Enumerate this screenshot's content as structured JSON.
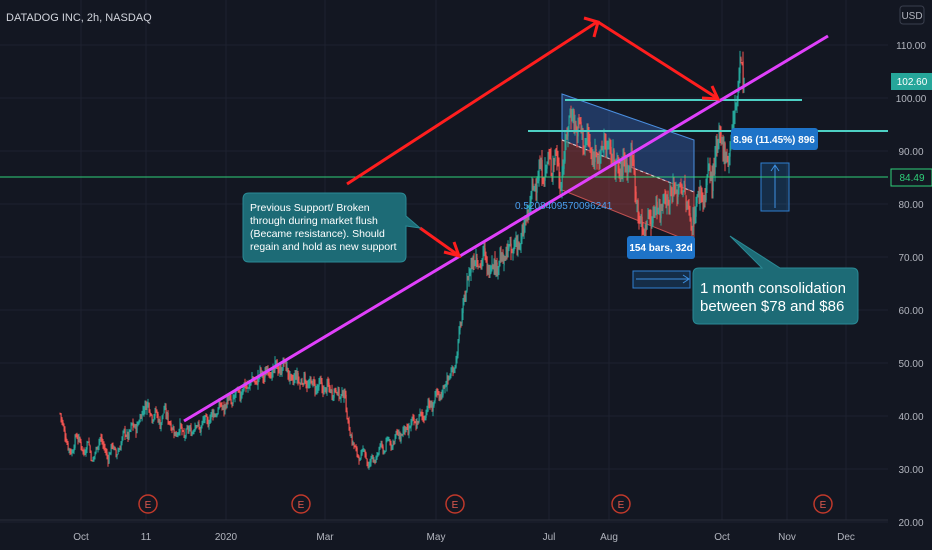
{
  "header": {
    "title": "DATADOG INC, 2h, NASDAQ"
  },
  "currency_badge": "USD",
  "price_labels": {
    "last": "102.60",
    "hline": "84.49"
  },
  "chart_data": {
    "type": "candlestick",
    "title": "DATADOG INC, 2h, NASDAQ",
    "y_unit": "USD",
    "ylim": [
      20,
      115
    ],
    "y_ticks": [
      "20.00",
      "30.00",
      "40.00",
      "50.00",
      "60.00",
      "70.00",
      "80.00",
      "90.00",
      "100.00",
      "110.00"
    ],
    "y_tick_values": [
      20,
      30,
      40,
      50,
      60,
      70,
      80,
      90,
      100,
      110
    ],
    "x_ticks": [
      "Oct",
      "11",
      "2020",
      "Mar",
      "May",
      "Jul",
      "Aug",
      "Oct",
      "Nov",
      "Dec"
    ],
    "grid": true,
    "last_price": 102.6,
    "horizontal_levels": [
      84.49
    ],
    "price_path": [
      [
        0,
        40.5
      ],
      [
        4,
        37.2
      ],
      [
        8,
        34.1
      ],
      [
        12,
        33.0
      ],
      [
        16,
        36.4
      ],
      [
        20,
        35.1
      ],
      [
        24,
        32.8
      ],
      [
        28,
        35.6
      ],
      [
        32,
        31.2
      ],
      [
        36,
        33.7
      ],
      [
        40,
        35.9
      ],
      [
        44,
        34.1
      ],
      [
        48,
        31.8
      ],
      [
        52,
        34.8
      ],
      [
        56,
        32.6
      ],
      [
        60,
        34.2
      ],
      [
        64,
        37.1
      ],
      [
        68,
        36.0
      ],
      [
        72,
        38.5
      ],
      [
        76,
        37.4
      ],
      [
        80,
        39.8
      ],
      [
        84,
        41.6
      ],
      [
        88,
        42.4
      ],
      [
        92,
        39.6
      ],
      [
        96,
        40.9
      ],
      [
        100,
        38.2
      ],
      [
        104,
        41.3
      ],
      [
        108,
        39.4
      ],
      [
        112,
        37.8
      ],
      [
        116,
        36.4
      ],
      [
        120,
        38.1
      ],
      [
        124,
        35.9
      ],
      [
        128,
        37.6
      ],
      [
        132,
        36.8
      ],
      [
        136,
        38.9
      ],
      [
        140,
        37.3
      ],
      [
        144,
        39.6
      ],
      [
        148,
        38.6
      ],
      [
        152,
        40.8
      ],
      [
        156,
        40.1
      ],
      [
        160,
        42.3
      ],
      [
        164,
        41.2
      ],
      [
        168,
        43.5
      ],
      [
        172,
        42.0
      ],
      [
        176,
        44.8
      ],
      [
        180,
        43.6
      ],
      [
        184,
        46.1
      ],
      [
        188,
        45.0
      ],
      [
        192,
        47.2
      ],
      [
        196,
        46.0
      ],
      [
        200,
        48.4
      ],
      [
        204,
        47.1
      ],
      [
        208,
        49.3
      ],
      [
        212,
        47.6
      ],
      [
        216,
        49.8
      ],
      [
        220,
        48.2
      ],
      [
        224,
        50.4
      ],
      [
        228,
        48.0
      ],
      [
        232,
        46.2
      ],
      [
        236,
        47.8
      ],
      [
        240,
        45.9
      ],
      [
        244,
        47.3
      ],
      [
        248,
        45.4
      ],
      [
        252,
        46.6
      ],
      [
        256,
        44.9
      ],
      [
        260,
        46.1
      ],
      [
        264,
        44.6
      ],
      [
        268,
        45.8
      ],
      [
        272,
        44.2
      ],
      [
        276,
        45.3
      ],
      [
        280,
        43.4
      ],
      [
        284,
        44.7
      ],
      [
        288,
        38.6
      ],
      [
        292,
        35.2
      ],
      [
        296,
        33.4
      ],
      [
        300,
        31.6
      ],
      [
        304,
        34.2
      ],
      [
        308,
        30.1
      ],
      [
        312,
        32.6
      ],
      [
        316,
        31.4
      ],
      [
        320,
        34.6
      ],
      [
        324,
        33.2
      ],
      [
        328,
        35.8
      ],
      [
        332,
        34.4
      ],
      [
        336,
        36.9
      ],
      [
        340,
        35.8
      ],
      [
        344,
        37.6
      ],
      [
        348,
        36.8
      ],
      [
        352,
        39.2
      ],
      [
        356,
        38.1
      ],
      [
        360,
        40.4
      ],
      [
        364,
        39.6
      ],
      [
        368,
        42.3
      ],
      [
        372,
        41.5
      ],
      [
        376,
        44.1
      ],
      [
        380,
        43.4
      ],
      [
        384,
        45.8
      ],
      [
        388,
        46.9
      ],
      [
        392,
        48.4
      ],
      [
        396,
        50.5
      ],
      [
        400,
        56.8
      ],
      [
        404,
        61.5
      ],
      [
        408,
        66.4
      ],
      [
        412,
        68.9
      ],
      [
        416,
        70.3
      ],
      [
        420,
        68.4
      ],
      [
        424,
        70.9
      ],
      [
        428,
        67.2
      ],
      [
        432,
        69.6
      ],
      [
        436,
        67.8
      ],
      [
        440,
        70.2
      ],
      [
        444,
        68.7
      ],
      [
        448,
        72.1
      ],
      [
        452,
        70.4
      ],
      [
        456,
        73.5
      ],
      [
        460,
        71.6
      ],
      [
        464,
        75.8
      ],
      [
        468,
        77.9
      ],
      [
        472,
        82.5
      ],
      [
        476,
        84.1
      ],
      [
        480,
        86.9
      ],
      [
        484,
        85.2
      ],
      [
        488,
        88.6
      ],
      [
        492,
        86.8
      ],
      [
        496,
        90.4
      ],
      [
        500,
        83.5
      ],
      [
        504,
        88.7
      ],
      [
        508,
        95.2
      ],
      [
        512,
        97.8
      ],
      [
        516,
        93.4
      ],
      [
        520,
        95.6
      ],
      [
        524,
        90.6
      ],
      [
        528,
        92.9
      ],
      [
        532,
        87.3
      ],
      [
        536,
        90.9
      ],
      [
        540,
        88.1
      ],
      [
        544,
        92.1
      ],
      [
        548,
        90.3
      ],
      [
        552,
        89.1
      ],
      [
        556,
        87.8
      ],
      [
        560,
        85.4
      ],
      [
        564,
        88.8
      ],
      [
        568,
        86.5
      ],
      [
        572,
        89.6
      ],
      [
        576,
        81.4
      ],
      [
        580,
        76.8
      ],
      [
        584,
        73.6
      ],
      [
        588,
        78.2
      ],
      [
        592,
        76.4
      ],
      [
        596,
        80.6
      ],
      [
        600,
        78.2
      ],
      [
        604,
        82.3
      ],
      [
        608,
        80.1
      ],
      [
        612,
        83.4
      ],
      [
        616,
        81.5
      ],
      [
        620,
        84.2
      ],
      [
        624,
        82.2
      ],
      [
        628,
        78.5
      ],
      [
        632,
        76.1
      ],
      [
        636,
        79.9
      ],
      [
        640,
        82.6
      ],
      [
        644,
        80.5
      ],
      [
        648,
        86.8
      ],
      [
        652,
        84.2
      ],
      [
        656,
        89.6
      ],
      [
        660,
        92.4
      ],
      [
        664,
        90.4
      ],
      [
        668,
        87.9
      ],
      [
        672,
        94.2
      ],
      [
        676,
        98.5
      ],
      [
        680,
        107.3
      ],
      [
        684,
        102.6
      ]
    ]
  },
  "annotations": {
    "callout_support": "Previous Support/ Broken through during market flush (Became resistance). Should regain and hold as new support",
    "callout_support_lines": [
      "Previous Support/ Broken",
      "through during market flush",
      "(Became resistance). Should",
      "regain and hold as new support"
    ],
    "fib_label": "0.5208409570096241",
    "bars_label": "154 bars, 32d",
    "measure_label": "8.96 (11.45%) 896",
    "callout_consolidation_lines": [
      "1 month consolidation",
      "between $78 and $86"
    ],
    "earnings_marker": "E"
  },
  "colors": {
    "background": "#131722",
    "up": "#26a69a",
    "down": "#ef5350",
    "trendline": "#e040fb",
    "red_arrow": "#ff1e1e",
    "cyan_line": "#4dd0c4",
    "green_line": "#2fd07a",
    "callout": "#1d6b76",
    "blue_label": "#2196f3",
    "axis_text": "#b2b5be",
    "grid": "#1e2230"
  }
}
